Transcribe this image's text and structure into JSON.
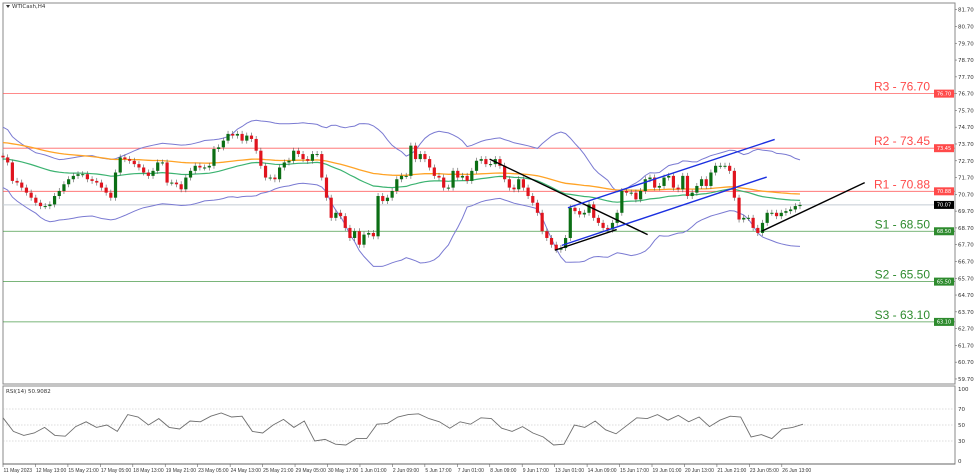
{
  "header": {
    "symbol_label": "WTICash,H4"
  },
  "rsi_panel": {
    "label": "RSI(14) 50.9082"
  },
  "colors": {
    "bull_candle": "#0b6e14",
    "bear_candle": "#e0141e",
    "resistance": "#ff4a4a",
    "support": "#2e8b2e",
    "bollinger": "#7a7ad2",
    "ma_fast": "#3cb371",
    "ma_slow": "#ffa326",
    "trend_black": "#000000",
    "channel_blue": "#1a2fe0",
    "rsi_line": "#6e6e6e",
    "current_price_line": "#c4ccd4"
  },
  "chart_data": {
    "type": "candlestick",
    "title": "",
    "ylim": [
      59.4,
      82.1
    ],
    "y_ticks": [
      "81.70",
      "80.70",
      "79.70",
      "78.70",
      "77.70",
      "76.70",
      "75.70",
      "74.70",
      "73.70",
      "72.70",
      "71.70",
      "70.70",
      "69.70",
      "68.70",
      "67.70",
      "66.70",
      "65.70",
      "64.70",
      "63.70",
      "62.70",
      "61.70",
      "60.70",
      "59.70"
    ],
    "x_ticks": [
      "11 May 2023",
      "12 May 13:00",
      "15 May 21:00",
      "17 May 05:00",
      "18 May 13:00",
      "19 May 21:00",
      "23 May 05:00",
      "24 May 13:00",
      "25 May 21:00",
      "29 May 05:00",
      "30 May 17:00",
      "1 Jun 01:00",
      "2 Jun 09:00",
      "5 Jun 17:00",
      "7 Jun 01:00",
      "8 Jun 09:00",
      "9 Jun 17:00",
      "13 Jun 01:00",
      "14 Jun 09:00",
      "15 Jun 17:00",
      "19 Jun 01:00",
      "20 Jun 13:00",
      "21 Jun 21:00",
      "23 Jun 05:00",
      "26 Jun 13:00"
    ],
    "closes": [
      72.9,
      72.6,
      71.5,
      71.4,
      71.1,
      70.8,
      70.5,
      70.2,
      70.0,
      70.0,
      70.1,
      70.6,
      70.9,
      71.3,
      71.6,
      71.8,
      71.9,
      71.9,
      71.6,
      71.5,
      71.4,
      71.1,
      70.8,
      70.5,
      72.0,
      72.9,
      72.8,
      72.7,
      72.5,
      72.3,
      72.0,
      71.8,
      72.1,
      72.6,
      72.6,
      71.4,
      71.4,
      71.3,
      71.0,
      71.7,
      72.1,
      72.4,
      72.3,
      72.3,
      72.4,
      73.4,
      73.5,
      73.9,
      74.3,
      74.2,
      74.3,
      73.9,
      74.2,
      74.0,
      73.3,
      72.4,
      71.7,
      71.7,
      71.6,
      72.3,
      72.6,
      72.7,
      73.3,
      73.1,
      72.8,
      72.7,
      73.1,
      73.1,
      71.7,
      70.5,
      69.3,
      69.6,
      69.4,
      68.7,
      68.1,
      68.5,
      67.7,
      68.3,
      68.4,
      68.2,
      70.6,
      70.3,
      70.5,
      70.9,
      71.6,
      71.8,
      71.8,
      73.6,
      72.8,
      73.1,
      72.8,
      72.3,
      71.8,
      71.7,
      71.1,
      71.1,
      72.1,
      71.7,
      71.8,
      71.5,
      72.1,
      72.7,
      72.8,
      72.5,
      72.5,
      72.8,
      72.4,
      71.6,
      71.1,
      71.0,
      71.6,
      71.1,
      70.6,
      70.2,
      69.6,
      68.5,
      68.1,
      67.7,
      67.4,
      67.5,
      68.1,
      69.9,
      69.7,
      69.5,
      69.6,
      70.1,
      69.3,
      69.0,
      68.7,
      68.6,
      69.0,
      69.6,
      70.9,
      70.8,
      70.8,
      70.4,
      70.9,
      71.6,
      71.7,
      71.1,
      71.2,
      71.7,
      71.8,
      71.1,
      71.0,
      71.8,
      70.6,
      70.8,
      71.2,
      71.6,
      71.2,
      72.0,
      72.4,
      72.4,
      72.4,
      72.1,
      70.5,
      69.2,
      69.3,
      69.3,
      68.7,
      68.4,
      69.0,
      69.6,
      69.6,
      69.4,
      69.6,
      69.7,
      69.8,
      70.0,
      70.07
    ],
    "current_price": "70.07",
    "levels": [
      {
        "name": "R3",
        "label": "R3 - 76.70",
        "value": 76.7,
        "badge": "76.70",
        "kind": "resistance"
      },
      {
        "name": "R2",
        "label": "R2 - 73.45",
        "value": 73.45,
        "badge": "73.45",
        "kind": "resistance"
      },
      {
        "name": "R1",
        "label": "R1 - 70.88",
        "value": 70.88,
        "badge": "70.88",
        "kind": "resistance"
      },
      {
        "name": "S1",
        "label": "S1 - 68.50",
        "value": 68.5,
        "badge": "68.50",
        "kind": "support"
      },
      {
        "name": "S2",
        "label": "S2 - 65.50",
        "value": 65.5,
        "badge": "65.50",
        "kind": "support"
      },
      {
        "name": "S3",
        "label": "S3 - 63.10",
        "value": 63.1,
        "badge": "63.10",
        "kind": "support"
      }
    ],
    "trendlines": [
      {
        "name": "downtrend-line",
        "color": "black",
        "from_bar": 103.8,
        "from_price": 72.8,
        "to_bar": 137.5,
        "to_price": 68.3
      },
      {
        "name": "channel-upper-line",
        "color": "blue",
        "from_bar": 120.5,
        "from_price": 69.9,
        "to_bar": 164.6,
        "to_price": 73.97
      },
      {
        "name": "channel-lower-line",
        "color": "blue",
        "from_bar": 119.2,
        "from_price": 67.66,
        "to_bar": 162.9,
        "to_price": 71.73
      },
      {
        "name": "support-trend-short",
        "color": "black",
        "from_bar": 117.7,
        "from_price": 67.37,
        "to_bar": 130.9,
        "to_price": 68.6
      },
      {
        "name": "uptrend-line",
        "color": "black",
        "from_bar": 161.8,
        "from_price": 68.5,
        "to_bar": 183.8,
        "to_price": 71.4
      }
    ],
    "rsi": {
      "period": 14,
      "ylim": [
        0,
        100
      ],
      "ticks": [
        "100",
        "70",
        "50",
        "30",
        "0"
      ],
      "guide_levels": [
        70,
        50,
        30
      ],
      "values": [
        59,
        42,
        37,
        40,
        47,
        37,
        36,
        48,
        54,
        47,
        50,
        42,
        63,
        60,
        50,
        58,
        47,
        45,
        55,
        54,
        61,
        65,
        60,
        61,
        42,
        40,
        50,
        57,
        47,
        55,
        30,
        32,
        26,
        25,
        33,
        33,
        51,
        52,
        60,
        63,
        64,
        58,
        54,
        46,
        54,
        51,
        59,
        58,
        46,
        42,
        48,
        40,
        35,
        25,
        26,
        50,
        47,
        55,
        44,
        39,
        49,
        59,
        58,
        63,
        56,
        62,
        54,
        60,
        48,
        56,
        61,
        60,
        35,
        38,
        33,
        45,
        47,
        51
      ]
    }
  }
}
